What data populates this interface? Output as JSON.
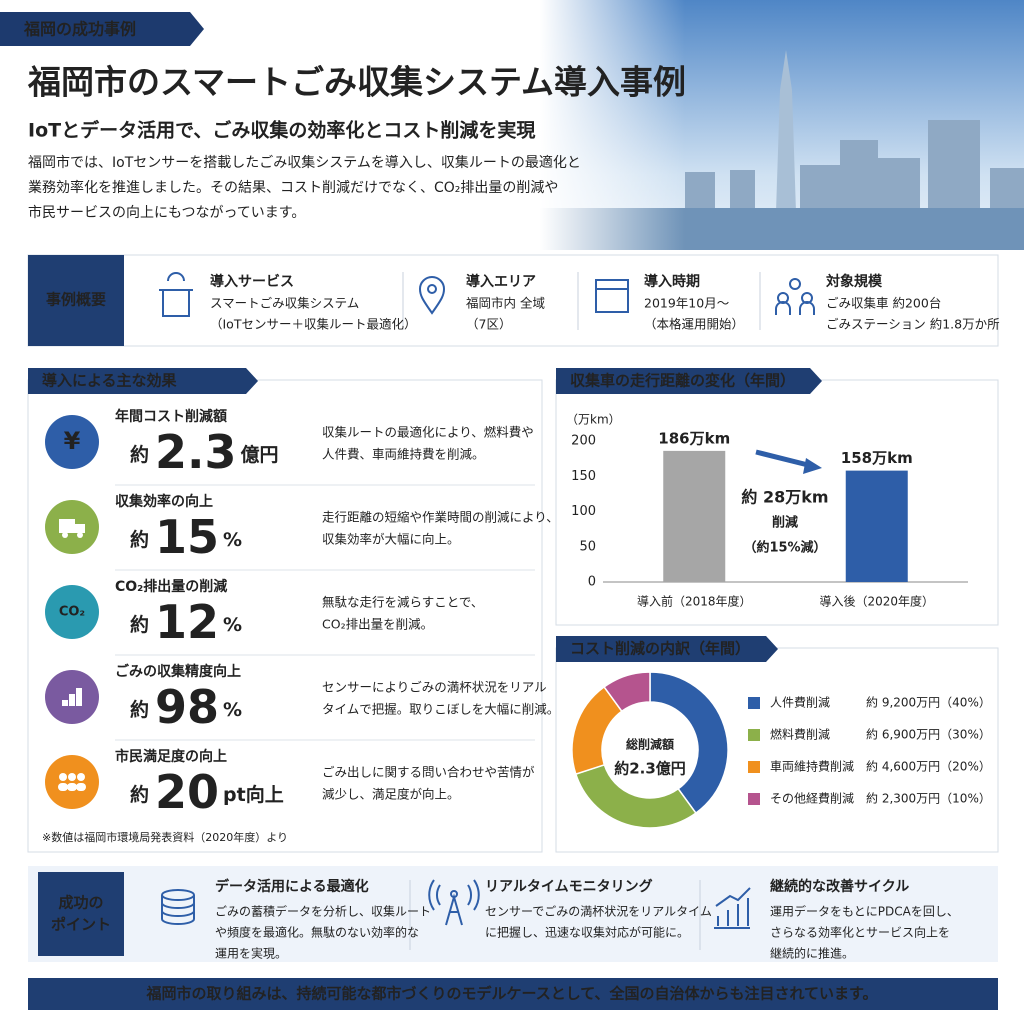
{
  "header": {
    "tag": "福岡の成功事例",
    "title": "福岡市のスマートごみ収集システム導入事例",
    "subtitle": "IoTとデータ活用で、ごみ収集の効率化とコスト削減を実現",
    "description": [
      "福岡市では、IoTセンサーを搭載したごみ収集システムを導入し、収集ルートの最適化と",
      "業務効率化を推進しました。その結果、コスト削減だけでなく、CO₂排出量の削減や",
      "市民サービスの向上にもつながっています。"
    ]
  },
  "overview": {
    "label": "事例概要",
    "items": [
      {
        "title": "導入サービス",
        "lines": [
          "スマートごみ収集システム",
          "（IoTセンサー＋収集ルート最適化）"
        ]
      },
      {
        "title": "導入エリア",
        "lines": [
          "福岡市内 全域",
          "（7区）"
        ]
      },
      {
        "title": "導入時期",
        "lines": [
          "2019年10月～",
          "（本格運用開始）"
        ]
      },
      {
        "title": "対象規模",
        "lines": [
          "ごみ収集車 約200台",
          "ごみステーション 約1.8万か所"
        ]
      }
    ]
  },
  "effects": {
    "title": "導入による主な効果",
    "items": [
      {
        "icon": "¥",
        "title": "年間コスト削減額",
        "prefix": "約",
        "value": 2.3,
        "unit": "億円",
        "color": "#2e5ea8",
        "lines": [
          "収集ルートの最適化により、燃料費や",
          "人件費、車両維持費を削減。"
        ]
      },
      {
        "title": "収集効率の向上",
        "prefix": "約",
        "value": 15,
        "unit": "%",
        "color": "#8cb04a",
        "lines": [
          "走行距離の短縮や作業時間の削減により、",
          "収集効率が大幅に向上。"
        ]
      },
      {
        "icon": "CO₂",
        "title": "CO₂排出量の削減",
        "prefix": "約",
        "value": 12,
        "unit": "%",
        "color": "#2a9ab0",
        "lines": [
          "無駄な走行を減らすことで、",
          "CO₂排出量を削減。"
        ]
      },
      {
        "title": "ごみの収集精度向上",
        "prefix": "約",
        "value": 98,
        "unit": "%",
        "color": "#7a5aa0",
        "lines": [
          "センサーによりごみの満杯状況をリアル",
          "タイムで把握。取りこぼしを大幅に削減。"
        ]
      },
      {
        "title": "市民満足度の向上",
        "prefix": "約",
        "value": 20,
        "unit": "pt向上",
        "color": "#f0901e",
        "lines": [
          "ごみ出しに関する問い合わせや苦情が",
          "減少し、満足度が向上。"
        ]
      }
    ],
    "note": "※数値は福岡市環境局発表資料（2020年度）より"
  },
  "chart_data": [
    {
      "type": "bar",
      "title": "収集車の走行距離の変化（年間）",
      "y_label": "（万km）",
      "categories": [
        "導入前（2018年度）",
        "導入後（2020年度）"
      ],
      "values": [
        186,
        158
      ],
      "value_labels": [
        "186万km",
        "158万km"
      ],
      "colors": [
        "#a6a6a6",
        "#2e5ea8"
      ],
      "ylim": [
        0,
        200
      ],
      "yticks": [
        0,
        50,
        100,
        150,
        200
      ],
      "grid": false,
      "annotation": [
        "約 28万km",
        "削減",
        "（約15%減）"
      ]
    },
    {
      "type": "pie",
      "title": "コスト削減の内訳（年間）",
      "center_label": [
        "総削減額",
        "約2.3億円"
      ],
      "categories": [
        "人件費削減",
        "燃料費削減",
        "車両維持費削減",
        "その他経費削減"
      ],
      "values": [
        40,
        30,
        20,
        10
      ],
      "value_labels": [
        "約 9,200万円（40%）",
        "約 6,900万円（30%）",
        "約 4,600万円（20%）",
        "約 2,300万円（10%）"
      ],
      "colors": [
        "#2e5ea8",
        "#8cb04a",
        "#f0901e",
        "#b5548e"
      ]
    }
  ],
  "points": {
    "label": [
      "成功の",
      "ポイント"
    ],
    "items": [
      {
        "title": "データ活用による最適化",
        "lines": [
          "ごみの蓄積データを分析し、収集ルート",
          "や頻度を最適化。無駄のない効率的な",
          "運用を実現。"
        ]
      },
      {
        "title": "リアルタイムモニタリング",
        "lines": [
          "センサーでごみの満杯状況をリアルタイム",
          "に把握し、迅速な収集対応が可能に。"
        ]
      },
      {
        "title": "継続的な改善サイクル",
        "lines": [
          "運用データをもとにPDCAを回し、",
          "さらなる効率化とサービス向上を",
          "継続的に推進。"
        ]
      }
    ]
  },
  "footer": "福岡市の取り組みは、持続可能な都市づくりのモデルケースとして、全国の自治体からも注目されています。"
}
